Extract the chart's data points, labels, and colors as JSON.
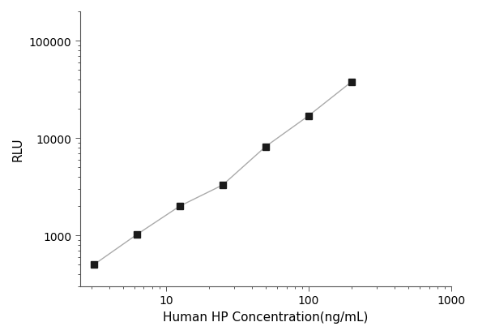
{
  "x": [
    3.125,
    6.25,
    12.5,
    25,
    50,
    100,
    200
  ],
  "y": [
    500,
    1020,
    2000,
    3300,
    8200,
    17000,
    38000
  ],
  "marker": "s",
  "marker_color": "#1a1a1a",
  "marker_size": 6,
  "line_color": "#aaaaaa",
  "line_style": "-",
  "line_width": 1.0,
  "xlabel": "Human HP Concentration(ng/mL)",
  "ylabel": "RLU",
  "xlim": [
    2.5,
    1000
  ],
  "ylim": [
    300,
    200000
  ],
  "xtick_major": [
    10,
    100,
    1000
  ],
  "ytick_major": [
    1000,
    10000,
    100000
  ],
  "background_color": "#ffffff",
  "xlabel_fontsize": 11,
  "ylabel_fontsize": 11,
  "tick_fontsize": 10,
  "spine_color": "#555555"
}
